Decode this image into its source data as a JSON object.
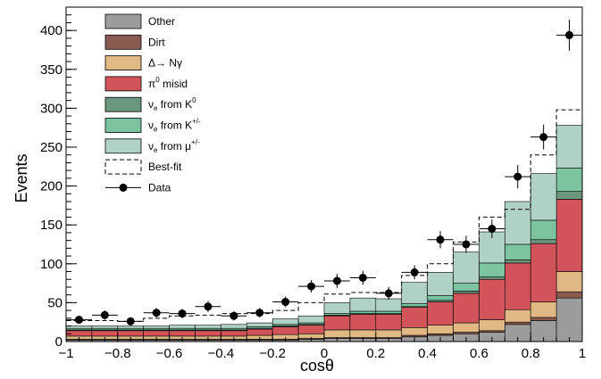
{
  "chart_data": {
    "type": "bar",
    "stacked": true,
    "xlabel": "cosθ",
    "ylabel": "Events",
    "xlim": [
      -1,
      1
    ],
    "ylim": [
      0,
      430
    ],
    "x_ticks": [
      -1,
      -0.8,
      -0.6,
      -0.4,
      -0.2,
      0,
      0.2,
      0.4,
      0.6,
      0.8,
      1
    ],
    "x_tick_labels": [
      "−1",
      "−0.8",
      "−0.6",
      "−0.4",
      "−0.2",
      "0",
      "0.2",
      "0.4",
      "0.6",
      "0.8",
      "1"
    ],
    "y_ticks": [
      0,
      50,
      100,
      150,
      200,
      250,
      300,
      350,
      400
    ],
    "y_tick_labels": [
      "0",
      "50",
      "100",
      "150",
      "200",
      "250",
      "300",
      "350",
      "400"
    ],
    "bin_edges": [
      -1,
      -0.9,
      -0.8,
      -0.7,
      -0.6,
      -0.5,
      -0.4,
      -0.3,
      -0.2,
      -0.1,
      0,
      0.1,
      0.2,
      0.3,
      0.4,
      0.5,
      0.6,
      0.7,
      0.8,
      0.9,
      1
    ],
    "grid": false,
    "legend_position": "top-left",
    "series": [
      {
        "name": "Other",
        "color": "#9c9c9c",
        "values": [
          2,
          2,
          2,
          2,
          2,
          2,
          2,
          2,
          2,
          3,
          4,
          4,
          4,
          6,
          8,
          10,
          12,
          22,
          27,
          56
        ]
      },
      {
        "name": "Dirt",
        "color": "#8a5b50",
        "values": [
          1,
          1,
          1,
          1,
          1,
          1,
          1,
          1,
          1,
          1,
          1,
          1,
          1,
          2,
          2,
          2,
          2,
          3,
          4,
          8
        ]
      },
      {
        "name": "Δ→ Nγ",
        "color": "#e0b883",
        "values": [
          4,
          4,
          4,
          4,
          4,
          4,
          4,
          5,
          6,
          6,
          10,
          10,
          10,
          10,
          11,
          12,
          14,
          16,
          20,
          26
        ]
      },
      {
        "name": "π⁰ misid",
        "color": "#d1545a",
        "values": [
          7,
          7,
          7,
          7,
          7,
          7,
          7,
          8,
          10,
          11,
          18,
          20,
          20,
          26,
          30,
          38,
          52,
          60,
          75,
          93
        ]
      },
      {
        "name": "νe from K⁰",
        "color": "#6c977f",
        "values": [
          1,
          1,
          1,
          1,
          1,
          1,
          1,
          1,
          1,
          1,
          1,
          1,
          1,
          1,
          2,
          3,
          3,
          4,
          5,
          10
        ]
      },
      {
        "name": "νe from K+/-",
        "color": "#7cc49f",
        "values": [
          2,
          2,
          2,
          2,
          2,
          2,
          2,
          2,
          2,
          2,
          2,
          3,
          3,
          4,
          6,
          10,
          18,
          20,
          25,
          30
        ]
      },
      {
        "name": "νe from μ+/-",
        "color": "#b0d2c6",
        "values": [
          3,
          3,
          3,
          3,
          4,
          4,
          5,
          5,
          7,
          9,
          14,
          17,
          16,
          27,
          30,
          40,
          40,
          55,
          60,
          55
        ]
      }
    ],
    "best_fit": {
      "name": "Best-fit",
      "values": [
        27,
        27,
        26,
        30,
        33,
        34,
        36,
        36,
        40,
        50,
        61,
        63,
        63,
        85,
        100,
        128,
        160,
        170,
        240,
        298
      ]
    },
    "data": {
      "name": "Data",
      "x": [
        -0.95,
        -0.85,
        -0.75,
        -0.65,
        -0.55,
        -0.45,
        -0.35,
        -0.25,
        -0.15,
        -0.05,
        0.05,
        0.15,
        0.25,
        0.35,
        0.45,
        0.55,
        0.65,
        0.75,
        0.85,
        0.95
      ],
      "y": [
        28,
        34,
        26,
        37,
        36,
        45,
        33,
        37,
        51,
        71,
        78,
        82,
        62,
        89,
        131,
        125,
        145,
        212,
        263,
        394
      ],
      "yerr": [
        5,
        6,
        5,
        6,
        6,
        7,
        6,
        6,
        7,
        8,
        9,
        9,
        8,
        9,
        11,
        11,
        12,
        15,
        16,
        20
      ]
    },
    "legend": [
      {
        "label": "Other",
        "kind": "box",
        "color": "#9c9c9c"
      },
      {
        "label": "Dirt",
        "kind": "box",
        "color": "#8a5b50"
      },
      {
        "label": "Δ→ Nγ",
        "kind": "box",
        "color": "#e0b883"
      },
      {
        "label": "π⁰ misid",
        "kind": "box",
        "color": "#d1545a"
      },
      {
        "label": "νe from K⁰",
        "kind": "box",
        "color": "#6c977f"
      },
      {
        "label": "νe from K+/-",
        "kind": "box",
        "color": "#7cc49f"
      },
      {
        "label": "νe from μ+/-",
        "kind": "box",
        "color": "#b0d2c6"
      },
      {
        "label": "Best-fit",
        "kind": "dashed"
      },
      {
        "label": "Data",
        "kind": "marker"
      }
    ]
  }
}
